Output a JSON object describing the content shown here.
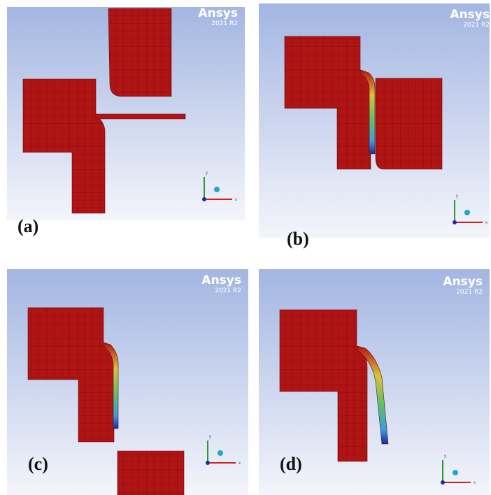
{
  "panels": [
    {
      "label": "(a)",
      "brand": "Ansys",
      "version": "2021 R2",
      "axis_y": "y",
      "axis_x": "x"
    },
    {
      "label": "(b)",
      "brand": "Ansys",
      "version": "2021 R2",
      "axis_y": "y",
      "axis_x": "x"
    },
    {
      "label": "(c)",
      "brand": "Ansys",
      "version": "2021 R2",
      "axis_y": "y",
      "axis_x": "x"
    },
    {
      "label": "(d)",
      "brand": "Ansys",
      "version": "2021 R2",
      "axis_y": "y",
      "axis_x": "x"
    }
  ]
}
